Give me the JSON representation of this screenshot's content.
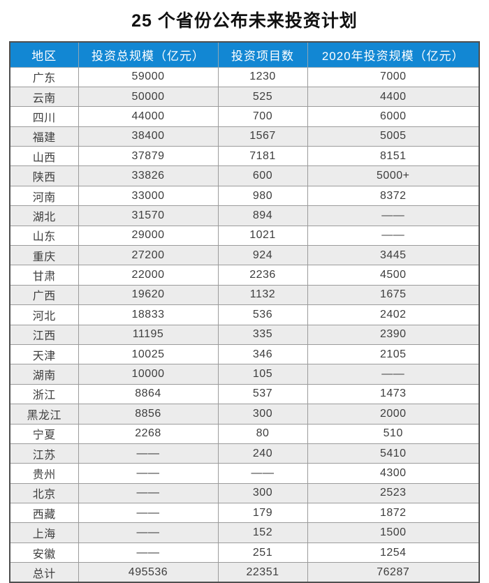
{
  "chart_data": {
    "type": "table",
    "title": "25 个省份公布未来投资计划",
    "columns": [
      "地区",
      "投资总规模（亿元）",
      "投资项目数",
      "2020年投资规模（亿元）"
    ],
    "rows": [
      [
        "广东",
        "59000",
        "1230",
        "7000"
      ],
      [
        "云南",
        "50000",
        "525",
        "4400"
      ],
      [
        "四川",
        "44000",
        "700",
        "6000"
      ],
      [
        "福建",
        "38400",
        "1567",
        "5005"
      ],
      [
        "山西",
        "37879",
        "7181",
        "8151"
      ],
      [
        "陕西",
        "33826",
        "600",
        "5000+"
      ],
      [
        "河南",
        "33000",
        "980",
        "8372"
      ],
      [
        "湖北",
        "31570",
        "894",
        "——"
      ],
      [
        "山东",
        "29000",
        "1021",
        "——"
      ],
      [
        "重庆",
        "27200",
        "924",
        "3445"
      ],
      [
        "甘肃",
        "22000",
        "2236",
        "4500"
      ],
      [
        "广西",
        "19620",
        "1132",
        "1675"
      ],
      [
        "河北",
        "18833",
        "536",
        "2402"
      ],
      [
        "江西",
        "11195",
        "335",
        "2390"
      ],
      [
        "天津",
        "10025",
        "346",
        "2105"
      ],
      [
        "湖南",
        "10000",
        "105",
        "——"
      ],
      [
        "浙江",
        "8864",
        "537",
        "1473"
      ],
      [
        "黑龙江",
        "8856",
        "300",
        "2000"
      ],
      [
        "宁夏",
        "2268",
        "80",
        "510"
      ],
      [
        "江苏",
        "——",
        "240",
        "5410"
      ],
      [
        "贵州",
        "——",
        "——",
        "4300"
      ],
      [
        "北京",
        "——",
        "300",
        "2523"
      ],
      [
        "西藏",
        "——",
        "179",
        "1872"
      ],
      [
        "上海",
        "——",
        "152",
        "1500"
      ],
      [
        "安徽",
        "——",
        "251",
        "1254"
      ],
      [
        "总计",
        "495536",
        "22351",
        "76287"
      ]
    ],
    "total_row_label": "总计",
    "layout": {
      "striped": true,
      "first_row_background": "white",
      "grid": true,
      "header_position": "top"
    }
  },
  "colors": {
    "header_bg": "#1287d3",
    "header_text": "#ffffff",
    "row_bg": "#ffffff",
    "row_alt_bg": "#ececec",
    "border_outer": "#4f4f4f",
    "border_inner": "#9b9b9b",
    "cell_text": "#3d3d3d",
    "title_text": "#111111"
  }
}
